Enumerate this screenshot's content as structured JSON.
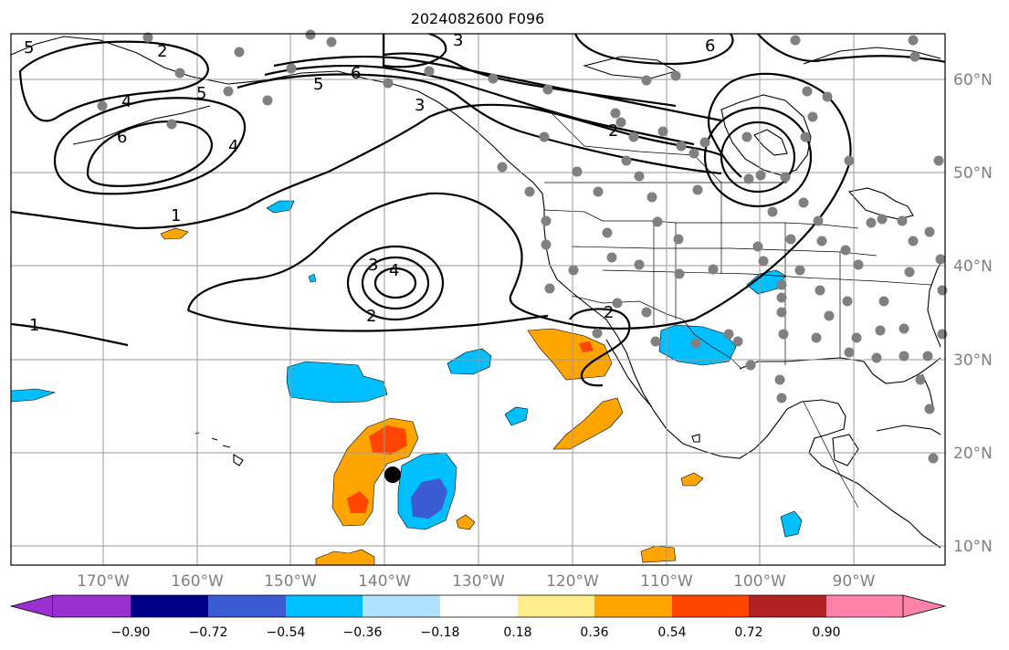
{
  "title": "2024082600 F096",
  "map": {
    "lon_labels": [
      "170°W",
      "160°W",
      "150°W",
      "140°W",
      "130°W",
      "120°W",
      "110°W",
      "100°W",
      "90°W"
    ],
    "lat_labels": [
      "60°N",
      "50°N",
      "40°N",
      "30°N",
      "20°N",
      "10°N"
    ],
    "contour_labels": [
      "1",
      "1",
      "2",
      "2",
      "2",
      "3",
      "4",
      "3",
      "4",
      "5",
      "5",
      "6",
      "6",
      "4",
      "3",
      "2",
      "5",
      "6"
    ],
    "colors": {
      "contour": "#000000",
      "grid": "#9a9a9a",
      "station": "#808080",
      "tick_label": "#7f7f7f"
    }
  },
  "colorbar": {
    "tick_labels": [
      "−0.90",
      "−0.72",
      "−0.54",
      "−0.36",
      "−0.18",
      "0.18",
      "0.36",
      "0.54",
      "0.72",
      "0.90"
    ],
    "colors": [
      "#9b30d0",
      "#00008b",
      "#3a5bd1",
      "#00bfff",
      "#b0e2ff",
      "#ffffff",
      "#ffec8b",
      "#ffa500",
      "#ff4500",
      "#b22222",
      "#ff82ab"
    ]
  }
}
